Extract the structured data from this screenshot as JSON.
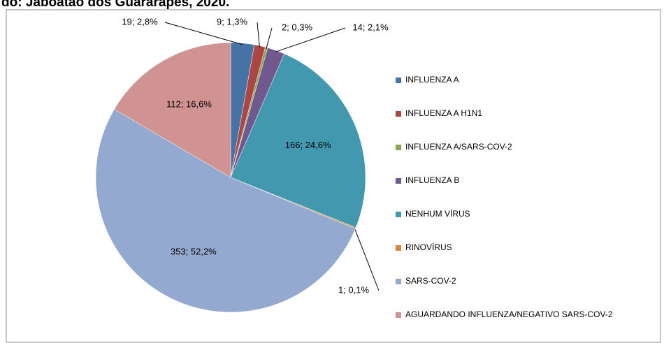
{
  "chart_data": {
    "type": "pie",
    "title": "do: Jaboatão dos Guararapes, 2020.",
    "categories": [
      "INFLUENZA A",
      "INFLUENZA A H1N1",
      "INFLUENZA A/SARS-COV-2",
      "INFLUENZA B",
      "NENHUM VÍRUS",
      "RINOVÍRUS",
      "SARS-COV-2",
      "AGUARDANDO INFLUENZA/NEGATIVO SARS-COV-2"
    ],
    "values": [
      19,
      9,
      2,
      14,
      166,
      1,
      353,
      112
    ],
    "value_labels": [
      "19; 2,8%",
      "9; 1,3%",
      "2; 0,3%",
      "14; 2,1%",
      "166; 24,6%",
      "1; 0,1%",
      "353; 52,2%",
      "112; 16,6%"
    ],
    "colors": [
      "#4572a7",
      "#aa4643",
      "#89a54e",
      "#71588f",
      "#4198af",
      "#db843d",
      "#93a9cf",
      "#d19392"
    ]
  }
}
